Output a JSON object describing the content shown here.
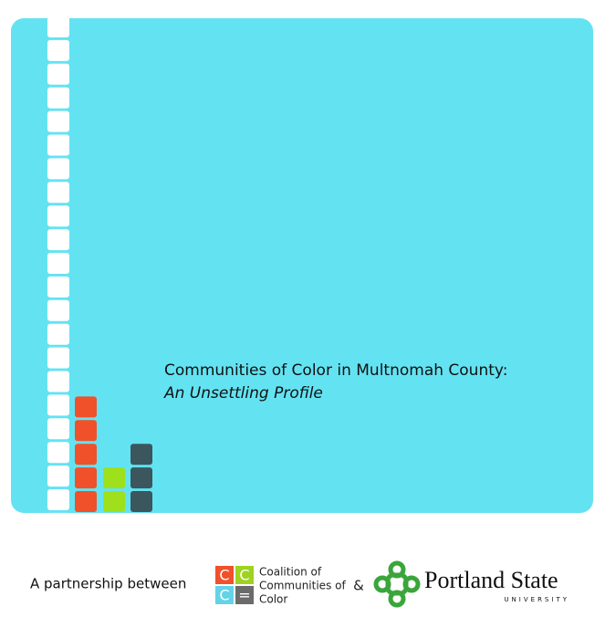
{
  "cover": {
    "title": "Communities of Color in Multnomah County:",
    "subtitle": "An Unsettling Profile"
  },
  "footer": {
    "partnership": "A partnership between",
    "coalition_logo": [
      "C",
      "C",
      "C",
      "="
    ],
    "coalition_name": [
      "Coalition of",
      "Communities of",
      "Color"
    ],
    "ampersand": "&",
    "university_name": "Portland State",
    "university_sub": "UNIVERSITY"
  }
}
